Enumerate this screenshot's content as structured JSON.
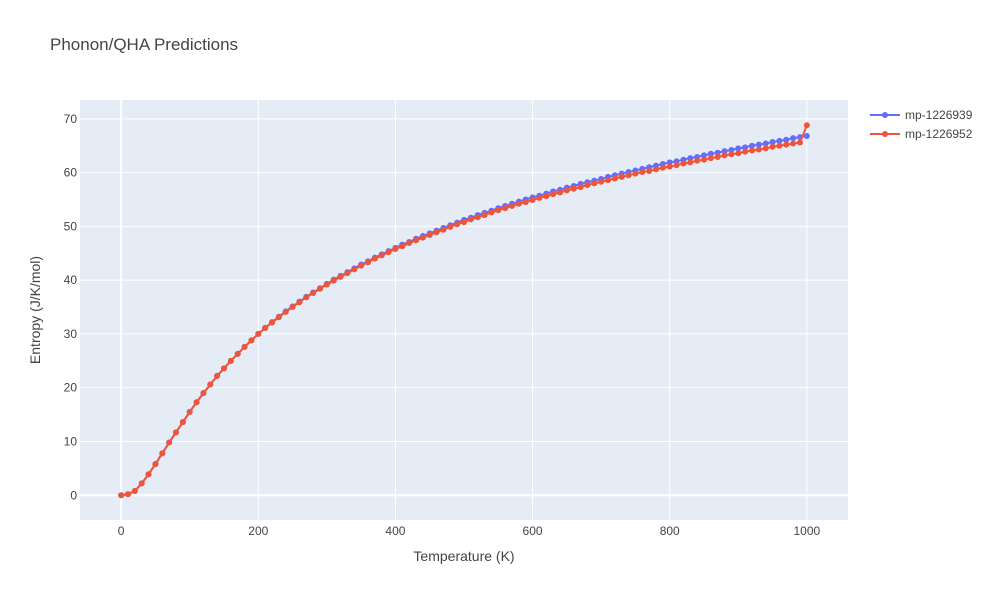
{
  "chart_data": {
    "type": "line",
    "title": "Phonon/QHA Predictions",
    "xlabel": "Temperature (K)",
    "ylabel": "Entropy (J/K/mol)",
    "xlim": [
      -60,
      1060
    ],
    "ylim": [
      -4.6,
      73.5
    ],
    "x_ticks": [
      0,
      200,
      400,
      600,
      800,
      1000
    ],
    "y_ticks": [
      0,
      10,
      20,
      30,
      40,
      50,
      60,
      70
    ],
    "grid": true,
    "legend_position": "right",
    "plot_background": "#E5ECF6",
    "series": [
      {
        "name": "mp-1226939",
        "color": "#636EFA",
        "x": [
          0,
          10,
          20,
          30,
          40,
          50,
          60,
          70,
          80,
          90,
          100,
          110,
          120,
          130,
          140,
          150,
          160,
          170,
          180,
          190,
          200,
          210,
          220,
          230,
          240,
          250,
          260,
          270,
          280,
          290,
          300,
          310,
          320,
          330,
          340,
          350,
          360,
          370,
          380,
          390,
          400,
          410,
          420,
          430,
          440,
          450,
          460,
          470,
          480,
          490,
          500,
          510,
          520,
          530,
          540,
          550,
          560,
          570,
          580,
          590,
          600,
          610,
          620,
          630,
          640,
          650,
          660,
          670,
          680,
          690,
          700,
          710,
          720,
          730,
          740,
          750,
          760,
          770,
          780,
          790,
          800,
          810,
          820,
          830,
          840,
          850,
          860,
          870,
          880,
          890,
          900,
          910,
          920,
          930,
          940,
          950,
          960,
          970,
          980,
          990,
          1000
        ],
        "y": [
          0,
          0.2,
          0.8,
          2.2,
          3.9,
          5.8,
          7.8,
          9.8,
          11.7,
          13.6,
          15.5,
          17.3,
          19.0,
          20.6,
          22.2,
          23.6,
          25.0,
          26.3,
          27.6,
          28.8,
          30.0,
          31.1,
          32.2,
          33.2,
          34.2,
          35.1,
          36.0,
          36.9,
          37.7,
          38.5,
          39.3,
          40.1,
          40.8,
          41.5,
          42.2,
          42.9,
          43.5,
          44.2,
          44.8,
          45.4,
          46.0,
          46.6,
          47.1,
          47.7,
          48.2,
          48.7,
          49.2,
          49.7,
          50.2,
          50.7,
          51.2,
          51.6,
          52.1,
          52.5,
          52.9,
          53.4,
          53.8,
          54.2,
          54.6,
          55.0,
          55.4,
          55.7,
          56.1,
          56.5,
          56.8,
          57.2,
          57.5,
          57.9,
          58.2,
          58.5,
          58.8,
          59.2,
          59.5,
          59.8,
          60.1,
          60.4,
          60.7,
          61.0,
          61.3,
          61.6,
          61.9,
          62.1,
          62.4,
          62.7,
          62.9,
          63.2,
          63.5,
          63.7,
          64.0,
          64.2,
          64.5,
          64.7,
          65.0,
          65.2,
          65.4,
          65.7,
          65.9,
          66.1,
          66.4,
          66.6,
          66.8
        ]
      },
      {
        "name": "mp-1226952",
        "color": "#EF553B",
        "x": [
          0,
          10,
          20,
          30,
          40,
          50,
          60,
          70,
          80,
          90,
          100,
          110,
          120,
          130,
          140,
          150,
          160,
          170,
          180,
          190,
          200,
          210,
          220,
          230,
          240,
          250,
          260,
          270,
          280,
          290,
          300,
          310,
          320,
          330,
          340,
          350,
          360,
          370,
          380,
          390,
          400,
          410,
          420,
          430,
          440,
          450,
          460,
          470,
          480,
          490,
          500,
          510,
          520,
          530,
          540,
          550,
          560,
          570,
          580,
          590,
          600,
          610,
          620,
          630,
          640,
          650,
          660,
          670,
          680,
          690,
          700,
          710,
          720,
          730,
          740,
          750,
          760,
          770,
          780,
          790,
          800,
          810,
          820,
          830,
          840,
          850,
          860,
          870,
          880,
          890,
          900,
          910,
          920,
          930,
          940,
          950,
          960,
          970,
          980,
          990,
          1000
        ],
        "y": [
          0,
          0.2,
          0.8,
          2.2,
          3.9,
          5.8,
          7.8,
          9.8,
          11.7,
          13.6,
          15.5,
          17.3,
          19.0,
          20.6,
          22.2,
          23.6,
          25.0,
          26.3,
          27.6,
          28.8,
          30.0,
          31.1,
          32.1,
          33.1,
          34.1,
          35.0,
          35.9,
          36.8,
          37.6,
          38.4,
          39.2,
          39.9,
          40.6,
          41.3,
          42.0,
          42.7,
          43.3,
          44.0,
          44.6,
          45.2,
          45.8,
          46.3,
          46.9,
          47.4,
          47.9,
          48.4,
          48.9,
          49.4,
          49.9,
          50.4,
          50.8,
          51.3,
          51.7,
          52.1,
          52.6,
          53.0,
          53.4,
          53.8,
          54.2,
          54.5,
          54.9,
          55.3,
          55.6,
          56.0,
          56.3,
          56.7,
          57.0,
          57.3,
          57.7,
          58.0,
          58.3,
          58.6,
          58.9,
          59.2,
          59.5,
          59.8,
          60.1,
          60.3,
          60.6,
          60.9,
          61.1,
          61.4,
          61.7,
          61.9,
          62.2,
          62.4,
          62.7,
          62.9,
          63.2,
          63.4,
          63.6,
          63.9,
          64.1,
          64.3,
          64.5,
          64.8,
          65.0,
          65.2,
          65.4,
          65.6,
          68.8
        ]
      }
    ]
  }
}
